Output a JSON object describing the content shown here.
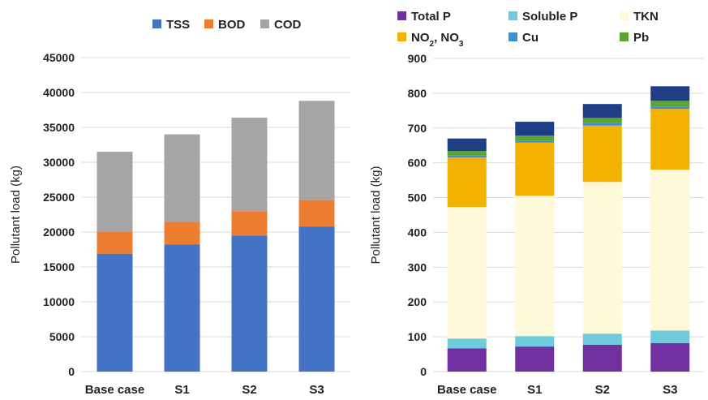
{
  "chart_data": [
    {
      "type": "bar",
      "stacked": true,
      "categories": [
        "Base case",
        "S1",
        "S2",
        "S3"
      ],
      "ylabel": "Pollutant load (kg)",
      "ylim": [
        0,
        45000
      ],
      "yticks": [
        0,
        5000,
        10000,
        15000,
        20000,
        25000,
        30000,
        35000,
        40000,
        45000
      ],
      "grid": true,
      "legend_position": "top",
      "series": [
        {
          "name": "TSS",
          "color": "#4472c4",
          "values": [
            16900,
            18200,
            19500,
            20800
          ]
        },
        {
          "name": "BOD",
          "color": "#ed7d31",
          "values": [
            3100,
            3300,
            3500,
            3800
          ]
        },
        {
          "name": "COD",
          "color": "#a5a5a5",
          "values": [
            11500,
            12500,
            13400,
            14200
          ]
        }
      ]
    },
    {
      "type": "bar",
      "stacked": true,
      "categories": [
        "Base case",
        "S1",
        "S2",
        "S3"
      ],
      "ylabel": "Pollutant load (kg)",
      "ylim": [
        0,
        900
      ],
      "yticks": [
        0,
        100,
        200,
        300,
        400,
        500,
        600,
        700,
        800,
        900
      ],
      "grid": true,
      "legend_position": "top",
      "series": [
        {
          "name": "Total P",
          "color": "#7030a0",
          "values": [
            67,
            72,
            77,
            82
          ]
        },
        {
          "name": "Soluble P",
          "color": "#6fcbdb",
          "values": [
            28,
            30,
            32,
            36
          ]
        },
        {
          "name": "TKN",
          "color": "#fef9d9",
          "values": [
            378,
            403,
            436,
            462
          ]
        },
        {
          "name": "NO2, NO3",
          "color": "#f4b200",
          "values": [
            142,
            153,
            162,
            175
          ]
        },
        {
          "name": "Cu",
          "color": "#3f8fd4",
          "values": [
            6,
            6,
            7,
            7
          ]
        },
        {
          "name": "Pb",
          "color": "#5ba633",
          "values": [
            13,
            14,
            15,
            16
          ]
        },
        {
          "name": "",
          "color": "#203e86",
          "values": [
            36,
            40,
            40,
            42
          ]
        }
      ]
    }
  ]
}
